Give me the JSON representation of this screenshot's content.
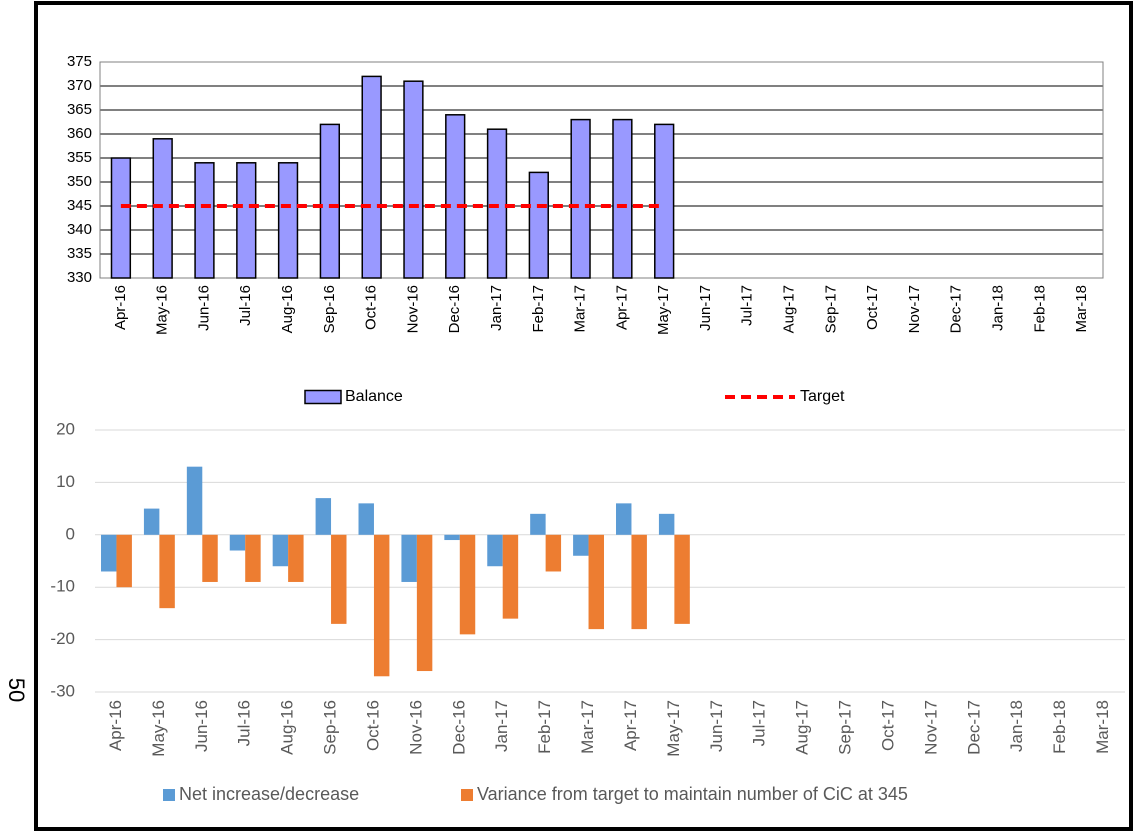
{
  "page_number": "50",
  "chart_data": [
    {
      "type": "bar",
      "categories": [
        "Apr-16",
        "May-16",
        "Jun-16",
        "Jul-16",
        "Aug-16",
        "Sep-16",
        "Oct-16",
        "Nov-16",
        "Dec-16",
        "Jan-17",
        "Feb-17",
        "Mar-17",
        "Apr-17",
        "May-17",
        "Jun-17",
        "Jul-17",
        "Aug-17",
        "Sep-17",
        "Oct-17",
        "Nov-17",
        "Dec-17",
        "Jan-18",
        "Feb-18",
        "Mar-18"
      ],
      "series": [
        {
          "name": "Balance",
          "type": "bar",
          "color": "#9999ff",
          "edgecolor": "#000000",
          "values": [
            355,
            359,
            354,
            354,
            354,
            362,
            372,
            371,
            364,
            361,
            352,
            363,
            363,
            362,
            null,
            null,
            null,
            null,
            null,
            null,
            null,
            null,
            null,
            null
          ]
        },
        {
          "name": "Target",
          "type": "line",
          "color": "#ff0000",
          "line_style": "dashed",
          "values": [
            345,
            345,
            345,
            345,
            345,
            345,
            345,
            345,
            345,
            345,
            345,
            345,
            345,
            345,
            null,
            null,
            null,
            null,
            null,
            null,
            null,
            null,
            null,
            null
          ]
        }
      ],
      "ylim": [
        330,
        375
      ],
      "yticks": [
        330,
        335,
        340,
        345,
        350,
        355,
        360,
        365,
        370,
        375
      ],
      "grid": true,
      "legend": "bottom"
    },
    {
      "type": "bar",
      "categories": [
        "Apr-16",
        "May-16",
        "Jun-16",
        "Jul-16",
        "Aug-16",
        "Sep-16",
        "Oct-16",
        "Nov-16",
        "Dec-16",
        "Jan-17",
        "Feb-17",
        "Mar-17",
        "Apr-17",
        "May-17",
        "Jun-17",
        "Jul-17",
        "Aug-17",
        "Sep-17",
        "Oct-17",
        "Nov-17",
        "Dec-17",
        "Jan-18",
        "Feb-18",
        "Mar-18"
      ],
      "series": [
        {
          "name": "Net increase/decrease",
          "type": "bar",
          "color": "#5b9bd5",
          "values": [
            -7,
            5,
            13,
            -3,
            -6,
            7,
            6,
            -9,
            -1,
            -6,
            4,
            -4,
            6,
            4,
            null,
            null,
            null,
            null,
            null,
            null,
            null,
            null,
            null,
            null
          ]
        },
        {
          "name": "Variance from target to maintain number of CiC at 345",
          "type": "bar",
          "color": "#ed7d31",
          "values": [
            -10,
            -14,
            -9,
            -9,
            -9,
            -17,
            -27,
            -26,
            -19,
            -16,
            -7,
            -18,
            -18,
            -17,
            null,
            null,
            null,
            null,
            null,
            null,
            null,
            null,
            null,
            null
          ]
        }
      ],
      "ylim": [
        -30,
        20
      ],
      "yticks": [
        -30,
        -20,
        -10,
        0,
        10,
        20
      ],
      "grid": true,
      "legend": "bottom"
    }
  ]
}
